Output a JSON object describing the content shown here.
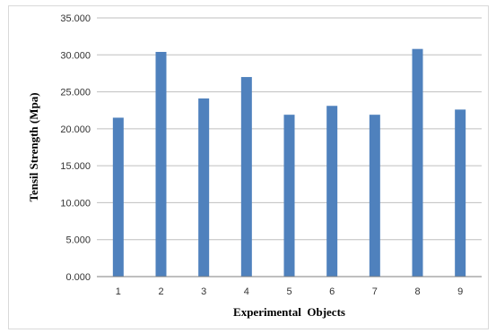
{
  "chart_data": {
    "type": "bar",
    "categories": [
      "1",
      "2",
      "3",
      "4",
      "5",
      "6",
      "7",
      "8",
      "9"
    ],
    "values": [
      21.5,
      30.4,
      24.1,
      27.0,
      21.9,
      23.1,
      21.9,
      30.8,
      22.6
    ],
    "title": "",
    "xlabel": "Experimental  Objects",
    "ylabel": "Tensil Strength (Mpa)",
    "ylim": [
      0,
      35
    ],
    "yticks": [
      "0.000",
      "5.000",
      "10.000",
      "15.000",
      "20.000",
      "25.000",
      "30.000",
      "35.000"
    ],
    "grid": true,
    "legend": "none",
    "bar_color": "#4f81bd",
    "grid_color": "#bfbfbf"
  }
}
